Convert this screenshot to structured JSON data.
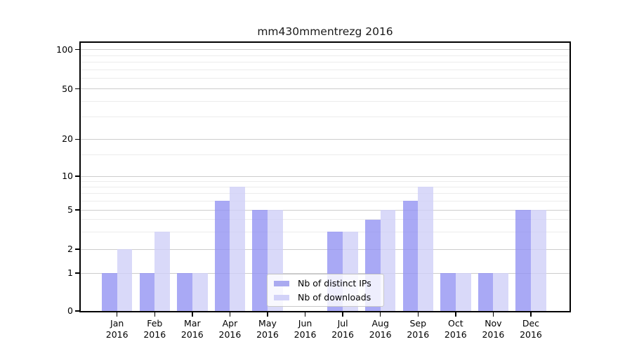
{
  "chart_data": {
    "type": "bar",
    "title": "mm430mmentrezg 2016",
    "categories": [
      "Jan 2016",
      "Feb 2016",
      "Mar 2016",
      "Apr 2016",
      "May 2016",
      "Jun 2016",
      "Jul 2016",
      "Aug 2016",
      "Sep 2016",
      "Oct 2016",
      "Nov 2016",
      "Dec 2016"
    ],
    "series": [
      {
        "name": "Nb of distinct IPs",
        "values": [
          1,
          1,
          1,
          6,
          5,
          0,
          3,
          4,
          6,
          1,
          1,
          5
        ],
        "bar_fill": "rgba(147,147,242,0.8)",
        "swatch_color": "#aaaaf0"
      },
      {
        "name": "Nb of downloads",
        "values": [
          2,
          3,
          1,
          8,
          5,
          0,
          3,
          5,
          8,
          1,
          1,
          5
        ],
        "bar_fill": "rgba(208,208,247,0.8)",
        "swatch_color": "#d2d2f8"
      }
    ],
    "xlabel": "",
    "ylabel": "",
    "ylim": [
      0,
      100
    ],
    "y_scale": "log-like (0,1 linear then logarithmic)",
    "y_ticks": [
      0,
      1,
      2,
      5,
      10,
      20,
      50,
      100
    ],
    "y_minor_gridlines": [
      3,
      4,
      6,
      7,
      8,
      9,
      15,
      30,
      40,
      60,
      70,
      80,
      90
    ],
    "grid": true,
    "legend_position": "lower center"
  }
}
